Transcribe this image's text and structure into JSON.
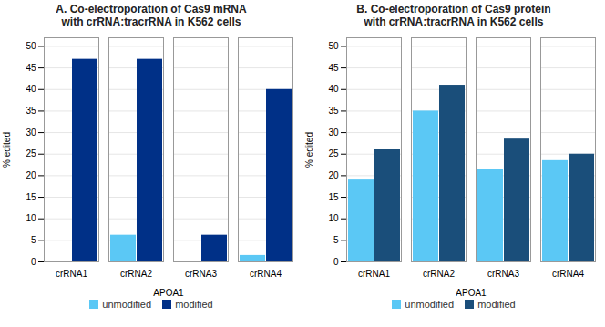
{
  "chart_data": [
    {
      "type": "bar",
      "title": "A. Co-electroporation of Cas9 mRNA\nwith crRNA:tracrRNA in K562 cells",
      "categories": [
        "crRNA1",
        "crRNA2",
        "crRNA3",
        "crRNA4"
      ],
      "series": [
        {
          "name": "unmodified",
          "color": "#5BC8F5",
          "values": [
            0,
            6.2,
            0,
            1.5
          ]
        },
        {
          "name": "modified",
          "color": "#003087",
          "values": [
            47,
            47,
            6.2,
            40
          ]
        }
      ],
      "xlabel": "APOA1",
      "ylabel": "% edited",
      "ylim": [
        0,
        52
      ],
      "yticks": [
        0,
        5,
        10,
        15,
        20,
        25,
        30,
        35,
        40,
        45,
        50
      ],
      "grid": true,
      "legend": "bottom"
    },
    {
      "type": "bar",
      "title": "B. Co-electroporation of Cas9 protein\nwith crRNA:tracrRNA in K562 cells",
      "categories": [
        "crRNA1",
        "crRNA2",
        "crRNA3",
        "crRNA4"
      ],
      "series": [
        {
          "name": "unmodified",
          "color": "#5BC8F5",
          "values": [
            19,
            35,
            21.5,
            23.5
          ]
        },
        {
          "name": "modified",
          "color": "#1A4E7A",
          "values": [
            26,
            41,
            28.5,
            25
          ]
        }
      ],
      "xlabel": "APOA1",
      "ylabel": "% edited",
      "ylim": [
        0,
        52
      ],
      "yticks": [
        0,
        5,
        10,
        15,
        20,
        25,
        30,
        35,
        40,
        45,
        50
      ],
      "grid": true,
      "legend": "bottom"
    }
  ]
}
